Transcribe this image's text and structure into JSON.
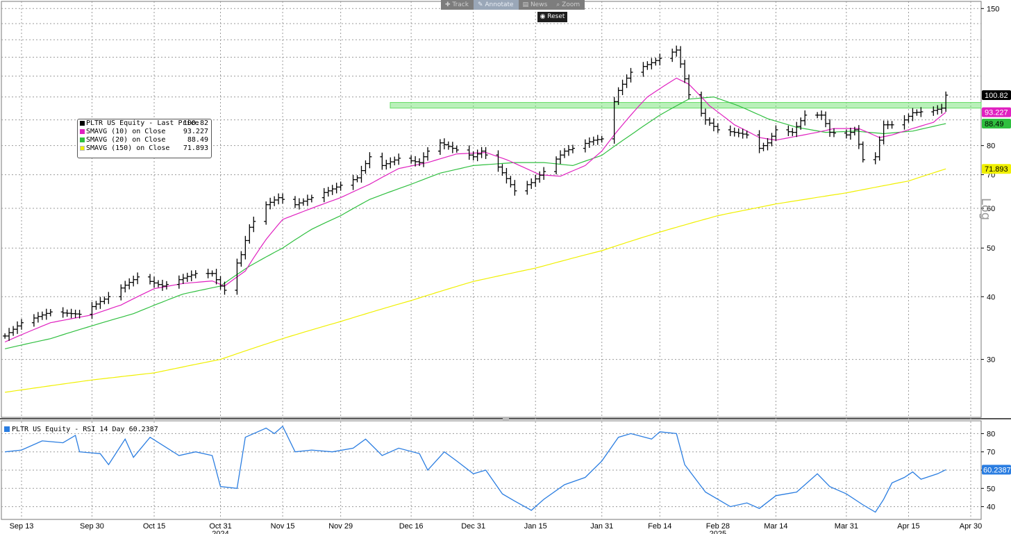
{
  "toolbar": {
    "buttons": [
      {
        "icon": "plus-icon",
        "label": "Track"
      },
      {
        "icon": "pencil-icon",
        "label": "Annotate"
      },
      {
        "icon": "news-icon",
        "label": "News"
      },
      {
        "icon": "magnifier-icon",
        "label": "Zoom"
      }
    ],
    "reset_label": "Reset"
  },
  "axis_label": "Log",
  "legend": [
    {
      "label": "PLTR US Equity - Last Price",
      "value": "100.82",
      "color": "#000000"
    },
    {
      "label": "SMAVG (10)  on Close",
      "value": "93.227",
      "color": "#e020c0"
    },
    {
      "label": "SMAVG (20)  on Close",
      "value": "88.49",
      "color": "#2fbf3f"
    },
    {
      "label": "SMAVG (150)  on Close",
      "value": "71.893",
      "color": "#f0f000"
    }
  ],
  "rsi_legend": "PLTR US Equity - RSI 14 Day 60.2387",
  "colors": {
    "price": "#000000",
    "sma10": "#e020c0",
    "sma20": "#2fbf3f",
    "sma150": "#f0f000",
    "rsi": "#2a7de1",
    "zone": "#66dd66",
    "grid": "#9a9a9a"
  },
  "chart_data": [
    {
      "type": "ohlc",
      "scale": "log",
      "ylim": [
        23,
        155
      ],
      "yticks": [
        30,
        40,
        50,
        60,
        70,
        80,
        150
      ],
      "xticks": [
        {
          "date": "2024-09-13",
          "label": "Sep 13"
        },
        {
          "date": "2024-09-30",
          "label": "Sep 30"
        },
        {
          "date": "2024-10-15",
          "label": "Oct 15"
        },
        {
          "date": "2024-10-31",
          "label": "Oct 31"
        },
        {
          "date": "2024-11-15",
          "label": "Nov 15"
        },
        {
          "date": "2024-11-29",
          "label": "Nov 29"
        },
        {
          "date": "2024-12-16",
          "label": "Dec 16"
        },
        {
          "date": "2024-12-31",
          "label": "Dec 31"
        },
        {
          "date": "2025-01-15",
          "label": "Jan 15"
        },
        {
          "date": "2025-01-31",
          "label": "Jan 31"
        },
        {
          "date": "2025-02-14",
          "label": "Feb 14"
        },
        {
          "date": "2025-02-28",
          "label": "Feb 28"
        },
        {
          "date": "2025-03-14",
          "label": "Mar 14"
        },
        {
          "date": "2025-03-31",
          "label": "Mar 31"
        },
        {
          "date": "2025-04-15",
          "label": "Apr 15"
        },
        {
          "date": "2025-04-30",
          "label": "Apr 30"
        }
      ],
      "year_labels": [
        {
          "date": "2024-10-31",
          "label": "2024"
        },
        {
          "date": "2025-02-28",
          "label": "2025"
        }
      ],
      "zone": [
        95,
        97.5
      ],
      "last_labels": [
        {
          "value": 100.82,
          "text": "100.82",
          "bg": "#000000",
          "fg": "#ffffff"
        },
        {
          "value": 93.227,
          "text": "93.227",
          "bg": "#e020c0",
          "fg": "#ffffff"
        },
        {
          "value": 88.49,
          "text": "88.49",
          "bg": "#2fbf3f",
          "fg": "#000000"
        },
        {
          "value": 71.893,
          "text": "71.893",
          "bg": "#f0f000",
          "fg": "#000000"
        }
      ],
      "price_key": [
        [
          "2024-09-09",
          33.4
        ],
        [
          "2024-09-13",
          35.5
        ],
        [
          "2024-09-20",
          37.3
        ],
        [
          "2024-09-27",
          36.9
        ],
        [
          "2024-10-04",
          40.0
        ],
        [
          "2024-10-11",
          43.8
        ],
        [
          "2024-10-17",
          42.0
        ],
        [
          "2024-10-25",
          44.5
        ],
        [
          "2024-10-29",
          44.5
        ],
        [
          "2024-10-31",
          42.0
        ],
        [
          "2024-11-01",
          41.2
        ],
        [
          "2024-11-05",
          48.5
        ],
        [
          "2024-11-07",
          55.0
        ],
        [
          "2024-11-11",
          61.0
        ],
        [
          "2024-11-14",
          63.0
        ],
        [
          "2024-11-18",
          61.0
        ],
        [
          "2024-11-22",
          63.0
        ],
        [
          "2024-11-26",
          65.0
        ],
        [
          "2024-12-03",
          69.0
        ],
        [
          "2024-12-06",
          76.0
        ],
        [
          "2024-12-09",
          73.0
        ],
        [
          "2024-12-13",
          75.5
        ],
        [
          "2024-12-18",
          74.0
        ],
        [
          "2024-12-20",
          78.0
        ],
        [
          "2024-12-23",
          81.0
        ],
        [
          "2024-12-26",
          79.0
        ],
        [
          "2024-12-31",
          76.0
        ],
        [
          "2025-01-02",
          78.0
        ],
        [
          "2025-01-06",
          72.5
        ],
        [
          "2025-01-10",
          65.0
        ],
        [
          "2025-01-14",
          67.5
        ],
        [
          "2025-01-17",
          71.0
        ],
        [
          "2025-01-22",
          78.0
        ],
        [
          "2025-01-24",
          79.0
        ],
        [
          "2025-01-29",
          82.0
        ],
        [
          "2025-01-31",
          82.5
        ],
        [
          "2025-02-04",
          103.0
        ],
        [
          "2025-02-07",
          112.0
        ],
        [
          "2025-02-12",
          117.0
        ],
        [
          "2025-02-18",
          124.0
        ],
        [
          "2025-02-21",
          101.0
        ],
        [
          "2025-02-25",
          90.0
        ],
        [
          "2025-02-28",
          86.0
        ],
        [
          "2025-03-04",
          85.0
        ],
        [
          "2025-03-07",
          84.0
        ],
        [
          "2025-03-10",
          79.0
        ],
        [
          "2025-03-12",
          81.0
        ],
        [
          "2025-03-14",
          86.0
        ],
        [
          "2025-03-18",
          85.0
        ],
        [
          "2025-03-21",
          92.0
        ],
        [
          "2025-03-25",
          92.0
        ],
        [
          "2025-03-27",
          85.0
        ],
        [
          "2025-03-31",
          84.0
        ],
        [
          "2025-04-02",
          86.0
        ],
        [
          "2025-04-04",
          75.0
        ],
        [
          "2025-04-07",
          76.0
        ],
        [
          "2025-04-09",
          88.0
        ],
        [
          "2025-04-11",
          88.0
        ],
        [
          "2025-04-14",
          90.0
        ],
        [
          "2025-04-16",
          93.0
        ],
        [
          "2025-04-21",
          94.0
        ],
        [
          "2025-04-23",
          95.0
        ],
        [
          "2025-04-24",
          100.82
        ]
      ],
      "sma10_key": [
        [
          "2024-09-09",
          32.5
        ],
        [
          "2024-09-20",
          35.5
        ],
        [
          "2024-09-30",
          36.8
        ],
        [
          "2024-10-07",
          38.5
        ],
        [
          "2024-10-15",
          41.5
        ],
        [
          "2024-10-22",
          42.5
        ],
        [
          "2024-10-29",
          43.0
        ],
        [
          "2024-11-01",
          42.0
        ],
        [
          "2024-11-06",
          45.0
        ],
        [
          "2024-11-11",
          52.0
        ],
        [
          "2024-11-15",
          57.0
        ],
        [
          "2024-11-22",
          60.0
        ],
        [
          "2024-11-29",
          63.0
        ],
        [
          "2024-12-06",
          67.0
        ],
        [
          "2024-12-13",
          72.0
        ],
        [
          "2024-12-20",
          74.0
        ],
        [
          "2024-12-27",
          77.0
        ],
        [
          "2025-01-03",
          77.5
        ],
        [
          "2025-01-08",
          75.0
        ],
        [
          "2025-01-16",
          70.0
        ],
        [
          "2025-01-21",
          69.5
        ],
        [
          "2025-01-27",
          73.0
        ],
        [
          "2025-01-31",
          78.0
        ],
        [
          "2025-02-05",
          88.0
        ],
        [
          "2025-02-11",
          100.0
        ],
        [
          "2025-02-18",
          109.0
        ],
        [
          "2025-02-21",
          106.0
        ],
        [
          "2025-02-26",
          96.0
        ],
        [
          "2025-03-04",
          88.0
        ],
        [
          "2025-03-10",
          83.0
        ],
        [
          "2025-03-14",
          82.0
        ],
        [
          "2025-03-19",
          83.5
        ],
        [
          "2025-03-24",
          85.0
        ],
        [
          "2025-03-28",
          86.5
        ],
        [
          "2025-04-03",
          86.5
        ],
        [
          "2025-04-08",
          83.0
        ],
        [
          "2025-04-11",
          84.0
        ],
        [
          "2025-04-16",
          86.5
        ],
        [
          "2025-04-21",
          89.0
        ],
        [
          "2025-04-24",
          93.227
        ]
      ],
      "sma20_key": [
        [
          "2024-09-09",
          31.5
        ],
        [
          "2024-09-20",
          33.0
        ],
        [
          "2024-09-30",
          35.0
        ],
        [
          "2024-10-10",
          37.0
        ],
        [
          "2024-10-22",
          40.5
        ],
        [
          "2024-10-31",
          42.0
        ],
        [
          "2024-11-07",
          46.0
        ],
        [
          "2024-11-15",
          50.0
        ],
        [
          "2024-11-22",
          54.5
        ],
        [
          "2024-11-29",
          58.0
        ],
        [
          "2024-12-06",
          62.5
        ],
        [
          "2024-12-16",
          67.0
        ],
        [
          "2024-12-23",
          70.5
        ],
        [
          "2024-12-31",
          73.0
        ],
        [
          "2025-01-10",
          74.0
        ],
        [
          "2025-01-17",
          74.0
        ],
        [
          "2025-01-24",
          73.0
        ],
        [
          "2025-01-31",
          76.5
        ],
        [
          "2025-02-07",
          84.0
        ],
        [
          "2025-02-14",
          92.0
        ],
        [
          "2025-02-21",
          99.0
        ],
        [
          "2025-02-27",
          100.0
        ],
        [
          "2025-03-05",
          96.0
        ],
        [
          "2025-03-12",
          90.5
        ],
        [
          "2025-03-19",
          87.0
        ],
        [
          "2025-03-26",
          85.0
        ],
        [
          "2025-04-02",
          85.5
        ],
        [
          "2025-04-09",
          84.5
        ],
        [
          "2025-04-16",
          85.5
        ],
        [
          "2025-04-24",
          88.49
        ]
      ],
      "sma150_key": [
        [
          "2024-09-09",
          25.8
        ],
        [
          "2024-09-30",
          27.3
        ],
        [
          "2024-10-15",
          28.2
        ],
        [
          "2024-10-31",
          30.0
        ],
        [
          "2024-11-15",
          33.0
        ],
        [
          "2024-11-29",
          35.7
        ],
        [
          "2024-12-16",
          39.3
        ],
        [
          "2024-12-31",
          42.9
        ],
        [
          "2025-01-15",
          45.6
        ],
        [
          "2025-01-31",
          49.4
        ],
        [
          "2025-02-14",
          53.8
        ],
        [
          "2025-02-28",
          58.0
        ],
        [
          "2025-03-14",
          61.2
        ],
        [
          "2025-03-31",
          64.4
        ],
        [
          "2025-04-15",
          68.0
        ],
        [
          "2025-04-24",
          71.893
        ]
      ]
    },
    {
      "type": "line",
      "name": "RSI 14 Day",
      "ylim": [
        33,
        87
      ],
      "yticks": [
        40,
        50,
        60,
        70,
        80
      ],
      "last_label": {
        "value": 60.2387,
        "text": "60.2387"
      },
      "values": [
        [
          "2024-09-09",
          70
        ],
        [
          "2024-09-13",
          71
        ],
        [
          "2024-09-18",
          76
        ],
        [
          "2024-09-23",
          75
        ],
        [
          "2024-09-26",
          79
        ],
        [
          "2024-09-27",
          70
        ],
        [
          "2024-10-02",
          69
        ],
        [
          "2024-10-04",
          63
        ],
        [
          "2024-10-08",
          77
        ],
        [
          "2024-10-10",
          67
        ],
        [
          "2024-10-14",
          78
        ],
        [
          "2024-10-21",
          68
        ],
        [
          "2024-10-25",
          70
        ],
        [
          "2024-10-29",
          68
        ],
        [
          "2024-10-31",
          51
        ],
        [
          "2024-11-04",
          50
        ],
        [
          "2024-11-06",
          78
        ],
        [
          "2024-11-11",
          83
        ],
        [
          "2024-11-13",
          80
        ],
        [
          "2024-11-15",
          84
        ],
        [
          "2024-11-18",
          70
        ],
        [
          "2024-11-22",
          71
        ],
        [
          "2024-11-27",
          70
        ],
        [
          "2024-12-02",
          72
        ],
        [
          "2024-12-05",
          77
        ],
        [
          "2024-12-09",
          68
        ],
        [
          "2024-12-13",
          72
        ],
        [
          "2024-12-18",
          69
        ],
        [
          "2024-12-20",
          60
        ],
        [
          "2024-12-24",
          70
        ],
        [
          "2024-12-27",
          65
        ],
        [
          "2024-12-31",
          58
        ],
        [
          "2025-01-03",
          60
        ],
        [
          "2025-01-07",
          47
        ],
        [
          "2025-01-10",
          43
        ],
        [
          "2025-01-14",
          38
        ],
        [
          "2025-01-17",
          44
        ],
        [
          "2025-01-22",
          52
        ],
        [
          "2025-01-27",
          56
        ],
        [
          "2025-01-31",
          65
        ],
        [
          "2025-02-04",
          78
        ],
        [
          "2025-02-07",
          80
        ],
        [
          "2025-02-12",
          77
        ],
        [
          "2025-02-14",
          81
        ],
        [
          "2025-02-18",
          80
        ],
        [
          "2025-02-20",
          63
        ],
        [
          "2025-02-25",
          48
        ],
        [
          "2025-03-03",
          40
        ],
        [
          "2025-03-07",
          42
        ],
        [
          "2025-03-10",
          39
        ],
        [
          "2025-03-14",
          46
        ],
        [
          "2025-03-19",
          48
        ],
        [
          "2025-03-24",
          58
        ],
        [
          "2025-03-27",
          51
        ],
        [
          "2025-03-31",
          47
        ],
        [
          "2025-04-04",
          41
        ],
        [
          "2025-04-07",
          37
        ],
        [
          "2025-04-09",
          44
        ],
        [
          "2025-04-11",
          53
        ],
        [
          "2025-04-14",
          56
        ],
        [
          "2025-04-16",
          59
        ],
        [
          "2025-04-18",
          55
        ],
        [
          "2025-04-22",
          58
        ],
        [
          "2025-04-24",
          60.24
        ]
      ]
    }
  ]
}
